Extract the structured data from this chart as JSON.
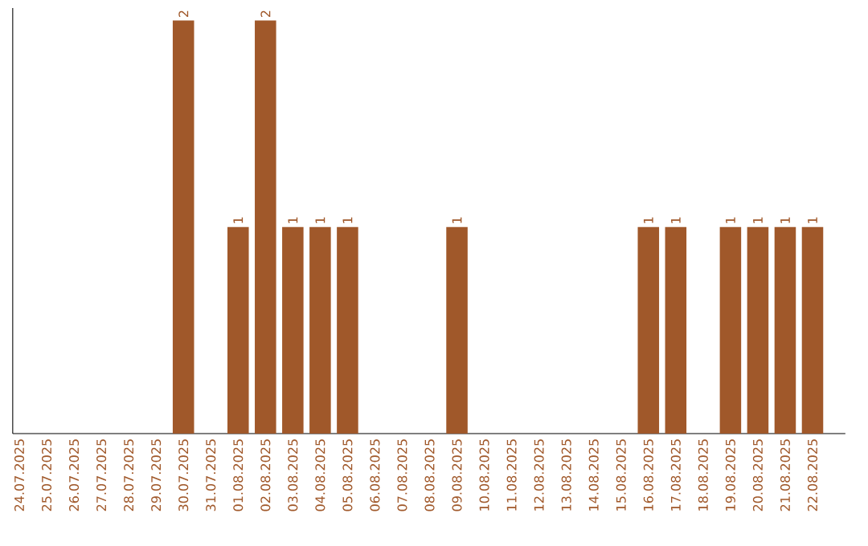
{
  "chart_data": {
    "type": "bar",
    "categories": [
      "24.07.2025",
      "25.07.2025",
      "26.07.2025",
      "27.07.2025",
      "28.07.2025",
      "29.07.2025",
      "30.07.2025",
      "31.07.2025",
      "01.08.2025",
      "02.08.2025",
      "03.08.2025",
      "04.08.2025",
      "05.08.2025",
      "06.08.2025",
      "07.08.2025",
      "08.08.2025",
      "09.08.2025",
      "10.08.2025",
      "11.08.2025",
      "12.08.2025",
      "13.08.2025",
      "14.08.2025",
      "15.08.2025",
      "16.08.2025",
      "17.08.2025",
      "18.08.2025",
      "19.08.2025",
      "20.08.2025",
      "21.08.2025",
      "22.08.2025"
    ],
    "values": [
      0,
      0,
      0,
      0,
      0,
      0,
      2,
      0,
      1,
      2,
      1,
      1,
      1,
      0,
      0,
      0,
      1,
      0,
      0,
      0,
      0,
      0,
      0,
      1,
      1,
      0,
      1,
      1,
      1,
      1
    ],
    "value_labels": [
      null,
      null,
      null,
      null,
      null,
      null,
      "2",
      null,
      "1",
      "2",
      "1",
      "1",
      "1",
      null,
      null,
      null,
      "1",
      null,
      null,
      null,
      null,
      null,
      null,
      "1",
      "1",
      null,
      "1",
      "1",
      "1",
      "1"
    ],
    "color": "#a0582a",
    "ylim": [
      0,
      2.06
    ],
    "tick_labels": "x"
  }
}
